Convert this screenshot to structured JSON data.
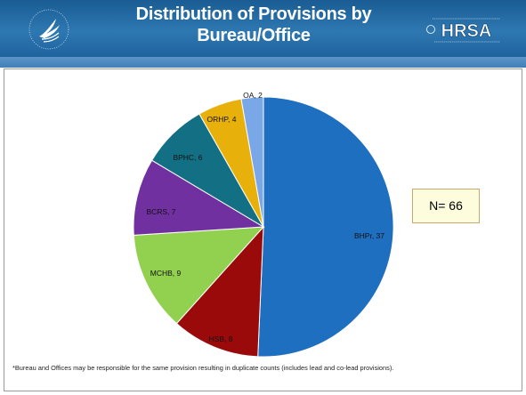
{
  "slide": {
    "title": "Distribution of Provisions by Bureau/Office",
    "hrsa_logo_text": "HRSA",
    "n_label": "N= 66",
    "footnote": "*Bureau and Offices may be responsible for the same provision resulting in duplicate counts (includes lead and co-lead provisions)."
  },
  "chart_data": {
    "type": "pie",
    "categories": [
      "BHPr",
      "HSB",
      "MCHB",
      "BCRS",
      "BPHC",
      "ORHP",
      "OA"
    ],
    "values": [
      37,
      8,
      9,
      7,
      6,
      4,
      2
    ],
    "data_labels": [
      "BHPr, 37",
      "HSB, 8",
      "MCHB, 9",
      "BCRS, 7",
      "BPHC, 6",
      "ORHP, 4",
      "OA, 2"
    ],
    "colors": [
      "#1f6fc0",
      "#9b0a0a",
      "#92d050",
      "#7030a0",
      "#137084",
      "#e8b00a",
      "#7aa7e8"
    ],
    "start": "12 o'clock",
    "direction": "clockwise",
    "title": "",
    "legend": "none"
  }
}
